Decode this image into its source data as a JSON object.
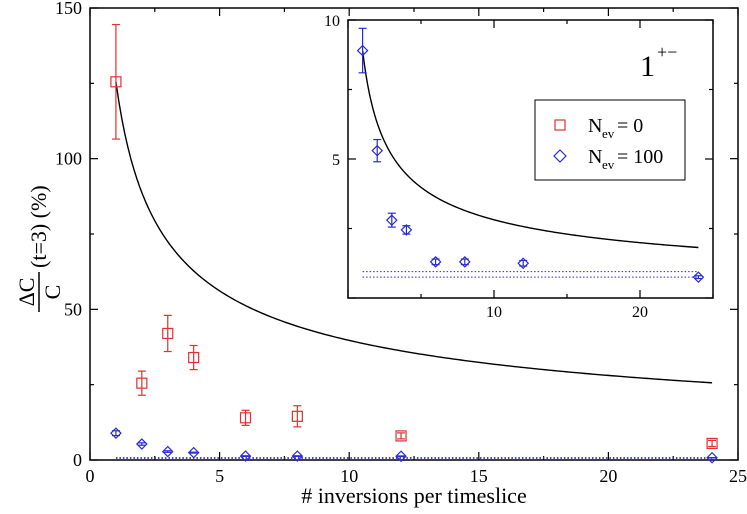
{
  "chart_data": [
    {
      "panel": "main",
      "type": "scatter",
      "xlabel": "# inversions per timeslice",
      "ylabel": {
        "numerator": "ΔC",
        "denominator": "C",
        "suffix": "(t=3) (%)"
      },
      "xlim": [
        0,
        25
      ],
      "ylim": [
        0,
        150
      ],
      "x_ticks": [
        0,
        5,
        10,
        15,
        20,
        25
      ],
      "y_ticks": [
        0,
        50,
        100,
        150
      ],
      "series": [
        {
          "name": "N_ev = 0",
          "marker": "square",
          "color": "#e03030",
          "points": [
            {
              "x": 1,
              "y": 125.5,
              "err": 19
            },
            {
              "x": 2,
              "y": 25.5,
              "err": 4
            },
            {
              "x": 3,
              "y": 42,
              "err": 6
            },
            {
              "x": 4,
              "y": 34,
              "err": 4
            },
            {
              "x": 6,
              "y": 14,
              "err": 2.5
            },
            {
              "x": 8,
              "y": 14.5,
              "err": 3.5
            },
            {
              "x": 12,
              "y": 8,
              "err": 1
            },
            {
              "x": 24,
              "y": 5.5,
              "err": 1
            }
          ]
        },
        {
          "name": "N_ev = 100",
          "marker": "diamond",
          "color": "#2a2ad8",
          "points": [
            {
              "x": 1,
              "y": 8.9,
              "err": 0.8
            },
            {
              "x": 2,
              "y": 5.3,
              "err": 0.4
            },
            {
              "x": 3,
              "y": 2.8,
              "err": 0.25
            },
            {
              "x": 4,
              "y": 2.45,
              "err": 0.15
            },
            {
              "x": 6,
              "y": 1.3,
              "err": 0.1
            },
            {
              "x": 8,
              "y": 1.3,
              "err": 0.1
            },
            {
              "x": 12,
              "y": 1.25,
              "err": 0.1
            },
            {
              "x": 24,
              "y": 0.75,
              "err": 0.05
            }
          ]
        }
      ],
      "curve": {
        "type": "a/sqrt(x)",
        "a": 125.5,
        "x_from": 1,
        "x_to": 24,
        "color": "#000000"
      },
      "dotted_lines": [
        {
          "y": 0.55
        },
        {
          "y": 0.8
        }
      ]
    },
    {
      "panel": "inset",
      "type": "scatter",
      "annotation": {
        "main": "1",
        "sup": "+−"
      },
      "xlim": [
        0,
        25
      ],
      "ylim": [
        0,
        10
      ],
      "x_ticks": [
        10,
        20
      ],
      "y_ticks": [
        5,
        10
      ],
      "legend": {
        "placement": "right",
        "entries": [
          {
            "symbol": "N",
            "sub": "ev",
            "value": "= 0",
            "marker": "square",
            "color": "#e03030"
          },
          {
            "symbol": "N",
            "sub": "ev",
            "value": "= 100",
            "marker": "diamond",
            "color": "#2a2ad8"
          }
        ]
      },
      "series": [
        {
          "name": "N_ev = 100",
          "marker": "diamond",
          "color": "#2a2ad8",
          "points": [
            {
              "x": 1,
              "y": 8.9,
              "err": 0.8
            },
            {
              "x": 2,
              "y": 5.3,
              "err": 0.4
            },
            {
              "x": 3,
              "y": 2.8,
              "err": 0.25
            },
            {
              "x": 4,
              "y": 2.45,
              "err": 0.15
            },
            {
              "x": 6,
              "y": 1.3,
              "err": 0.1
            },
            {
              "x": 8,
              "y": 1.3,
              "err": 0.1
            },
            {
              "x": 12,
              "y": 1.25,
              "err": 0.1
            },
            {
              "x": 24,
              "y": 0.75,
              "err": 0.05
            }
          ]
        }
      ],
      "curve": {
        "type": "a/sqrt(x)",
        "a": 8.9,
        "x_from": 1,
        "x_to": 24,
        "color": "#000000"
      },
      "dotted_lines": [
        {
          "y": 0.75
        },
        {
          "y": 0.95
        }
      ]
    }
  ]
}
